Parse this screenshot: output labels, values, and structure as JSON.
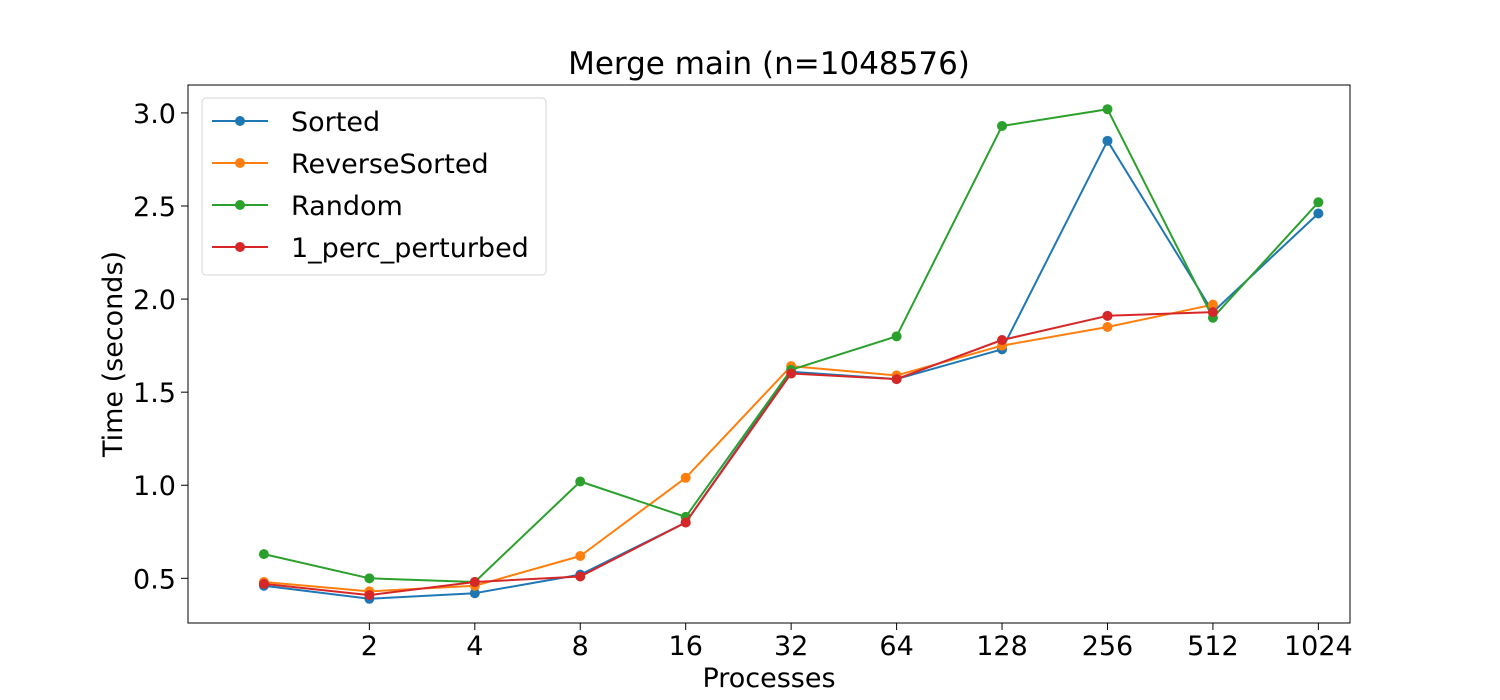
{
  "chart_data": {
    "type": "line",
    "title": "Merge main (n=1048576)",
    "xlabel": "Processes",
    "ylabel": "Time (seconds)",
    "x_scale": "log2",
    "x": [
      1,
      2,
      4,
      8,
      16,
      32,
      64,
      128,
      256,
      512,
      1024
    ],
    "x_ticks": [
      2,
      4,
      8,
      16,
      32,
      64,
      128,
      256,
      512,
      1024
    ],
    "x_tick_labels": [
      "2",
      "4",
      "8",
      "16",
      "32",
      "64",
      "128",
      "256",
      "512",
      "1024"
    ],
    "y_ticks": [
      0.5,
      1.0,
      1.5,
      2.0,
      2.5,
      3.0
    ],
    "y_tick_labels": [
      "0.5",
      "1.0",
      "1.5",
      "2.0",
      "2.5",
      "3.0"
    ],
    "ylim": [
      0.26,
      3.15
    ],
    "grid": false,
    "legend_position": "top-left",
    "series": [
      {
        "name": "Sorted",
        "color": "#1f77b4",
        "values": [
          0.46,
          0.39,
          0.42,
          0.52,
          0.8,
          1.61,
          1.57,
          1.73,
          2.85,
          1.93,
          2.46
        ]
      },
      {
        "name": "ReverseSorted",
        "color": "#ff7f0e",
        "values": [
          0.48,
          0.43,
          0.46,
          0.62,
          1.04,
          1.64,
          1.59,
          1.75,
          1.85,
          1.97,
          null
        ]
      },
      {
        "name": "Random",
        "color": "#2ca02c",
        "values": [
          0.63,
          0.5,
          0.48,
          1.02,
          0.83,
          1.62,
          1.8,
          2.93,
          3.02,
          1.9,
          2.52
        ]
      },
      {
        "name": "1_perc_perturbed",
        "color": "#d62728",
        "values": [
          0.47,
          0.41,
          0.48,
          0.51,
          0.8,
          1.6,
          1.57,
          1.78,
          1.91,
          1.93,
          null
        ]
      }
    ]
  }
}
